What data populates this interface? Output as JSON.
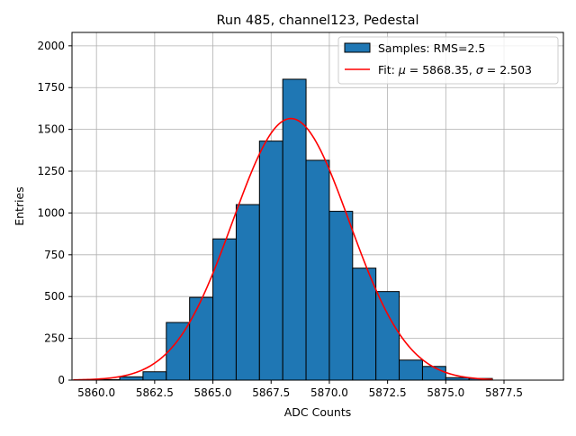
{
  "chart_data": {
    "type": "bar",
    "title": "Run 485, channel123, Pedestal",
    "xlabel": "ADC Counts",
    "ylabel": "Entries",
    "xlim": [
      5858.95,
      5880.05
    ],
    "ylim": [
      0,
      2080
    ],
    "x_ticks": [
      5860.0,
      5862.5,
      5865.0,
      5867.5,
      5870.0,
      5872.5,
      5875.0,
      5877.5
    ],
    "x_tick_labels": [
      "5860.0",
      "5862.5",
      "5865.0",
      "5867.5",
      "5870.0",
      "5872.5",
      "5875.0",
      "5877.5"
    ],
    "y_ticks": [
      0,
      250,
      500,
      750,
      1000,
      1250,
      1500,
      1750,
      2000
    ],
    "y_tick_labels": [
      "0",
      "250",
      "500",
      "750",
      "1000",
      "1250",
      "1500",
      "1750",
      "2000"
    ],
    "grid": true,
    "legend_position": "top-right",
    "histogram": {
      "name": "Samples: RMS=2.5",
      "bin_edges": [
        5860,
        5861,
        5862,
        5863,
        5864,
        5865,
        5866,
        5867,
        5868,
        5869,
        5870,
        5871,
        5872,
        5873,
        5874,
        5875,
        5876,
        5877
      ],
      "values": [
        3,
        20,
        50,
        345,
        495,
        845,
        1050,
        1430,
        1800,
        1315,
        1010,
        670,
        530,
        120,
        82,
        15,
        10
      ],
      "color": "#1f77b4"
    },
    "fit": {
      "name": "Fit: μ = 5868.35, σ = 2.503",
      "name_parts": {
        "prefix": "Fit: ",
        "mu_symbol": "μ",
        "mu_text": " = 5868.35, ",
        "sigma_symbol": "σ",
        "sigma_text": " = 2.503"
      },
      "mu": 5868.35,
      "sigma": 2.503,
      "amplitude": 1565,
      "x_range": [
        5859.0,
        5877.0
      ],
      "color": "#ff0000"
    }
  }
}
